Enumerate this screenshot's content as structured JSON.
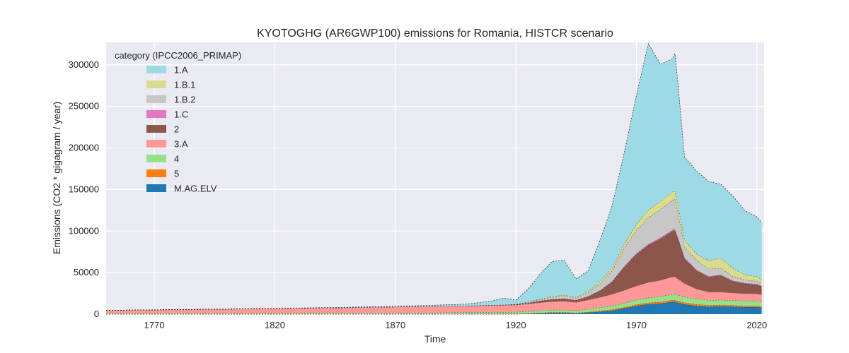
{
  "chart_data": {
    "type": "area",
    "stacked": true,
    "title": "KYOTOGHG (AR6GWP100) emissions for Romania, HISTCR scenario",
    "xlabel": "Time",
    "ylabel": "Emissions (CO2 * gigagram / year)",
    "xlim": [
      1750,
      2023
    ],
    "ylim": [
      0,
      327000
    ],
    "xticks": [
      1770,
      1820,
      1870,
      1920,
      1970,
      2020
    ],
    "yticks": [
      0,
      50000,
      100000,
      150000,
      200000,
      250000,
      300000
    ],
    "grid": true,
    "legend_title": "category (IPCC2006_PRIMAP)",
    "legend_position": "top-left",
    "x": [
      1750,
      1800,
      1850,
      1880,
      1900,
      1910,
      1915,
      1920,
      1925,
      1930,
      1935,
      1940,
      1945,
      1950,
      1955,
      1960,
      1965,
      1970,
      1975,
      1980,
      1985,
      1986,
      1987,
      1990,
      1995,
      2000,
      2005,
      2010,
      2015,
      2020,
      2022
    ],
    "series": [
      {
        "name": "M.AG.ELV",
        "color": "#1f77b4",
        "values": [
          0,
          0,
          0,
          0,
          0,
          0,
          0,
          0,
          500,
          1000,
          1500,
          1500,
          1000,
          2000,
          3000,
          4500,
          7000,
          10000,
          12000,
          13000,
          15000,
          15000,
          14000,
          12000,
          10000,
          9000,
          9500,
          9000,
          8500,
          8500,
          8000
        ]
      },
      {
        "name": "5",
        "color": "#ff7f0e",
        "values": [
          100,
          100,
          150,
          200,
          300,
          400,
          400,
          400,
          500,
          600,
          700,
          700,
          500,
          700,
          900,
          1100,
          1300,
          1500,
          1700,
          1800,
          2000,
          2000,
          2000,
          1900,
          1800,
          1700,
          1700,
          1600,
          1500,
          1500,
          1400
        ]
      },
      {
        "name": "4",
        "color": "#98df8a",
        "values": [
          1000,
          1000,
          1200,
          1500,
          1800,
          2000,
          2100,
          2200,
          2500,
          2800,
          3000,
          3000,
          2800,
          3500,
          4000,
          4500,
          5000,
          5500,
          6000,
          6500,
          7000,
          7000,
          7000,
          7000,
          6500,
          6000,
          6000,
          6000,
          6000,
          6000,
          5800
        ]
      },
      {
        "name": "3.A",
        "color": "#ff9896",
        "values": [
          3500,
          5000,
          6500,
          7500,
          8000,
          8200,
          8300,
          8500,
          9000,
          9500,
          10000,
          10500,
          10000,
          11000,
          12500,
          14000,
          15500,
          17000,
          18500,
          19500,
          21000,
          21000,
          20000,
          16000,
          12000,
          10000,
          9500,
          9000,
          8800,
          8500,
          8200
        ]
      },
      {
        "name": "2",
        "color": "#8c564b",
        "values": [
          0,
          0,
          0,
          0,
          100,
          200,
          300,
          500,
          1000,
          2000,
          2500,
          3000,
          2500,
          4000,
          8000,
          15000,
          28000,
          38000,
          45000,
          50000,
          55000,
          56000,
          50000,
          30000,
          22000,
          18000,
          20000,
          14000,
          12000,
          11000,
          10000
        ]
      },
      {
        "name": "1.C",
        "color": "#e377c2",
        "values": [
          0,
          0,
          0,
          0,
          0,
          0,
          0,
          0,
          0,
          100,
          100,
          100,
          100,
          200,
          300,
          500,
          800,
          1000,
          1200,
          1300,
          1400,
          1400,
          1300,
          1100,
          900,
          800,
          800,
          700,
          700,
          700,
          600
        ]
      },
      {
        "name": "1.B.2",
        "color": "#c7c7c7",
        "values": [
          0,
          0,
          0,
          0,
          0,
          100,
          100,
          200,
          800,
          1500,
          2500,
          3000,
          2500,
          4500,
          8000,
          13000,
          22000,
          28000,
          32000,
          34000,
          36000,
          36000,
          32000,
          13000,
          12000,
          9000,
          8000,
          5000,
          4000,
          3500,
          3000
        ]
      },
      {
        "name": "1.B.1",
        "color": "#dbdb8d",
        "values": [
          0,
          0,
          0,
          0,
          0,
          50,
          100,
          200,
          500,
          800,
          1000,
          1200,
          1000,
          1500,
          2500,
          3500,
          5000,
          7000,
          9000,
          9500,
          10000,
          10000,
          9000,
          8000,
          7000,
          10000,
          12000,
          10000,
          6000,
          5500,
          5000
        ]
      },
      {
        "name": "1.A",
        "color": "#9edae5",
        "values": [
          0,
          0,
          500,
          1000,
          2000,
          5000,
          8000,
          5000,
          15000,
          30000,
          42000,
          42000,
          22000,
          25000,
          50000,
          75000,
          110000,
          155000,
          200000,
          165000,
          160000,
          165000,
          150000,
          100000,
          100000,
          95000,
          89000,
          87000,
          77000,
          72000,
          68000
        ]
      }
    ]
  }
}
